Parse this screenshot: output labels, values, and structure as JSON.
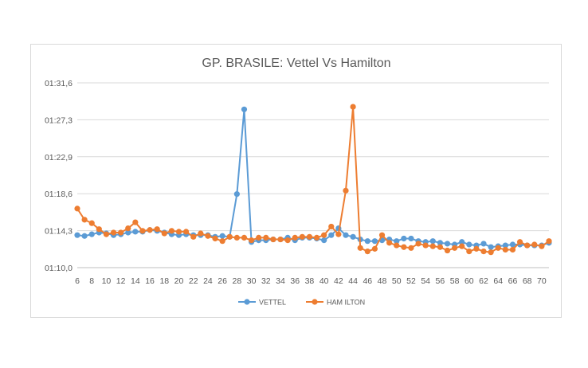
{
  "chart_data": {
    "type": "line",
    "title": "GP. BRASILE: Vettel Vs Hamilton",
    "xlabel": "",
    "ylabel": "",
    "x": [
      6,
      7,
      8,
      9,
      10,
      11,
      12,
      13,
      14,
      15,
      16,
      17,
      18,
      19,
      20,
      21,
      22,
      23,
      24,
      25,
      26,
      27,
      28,
      29,
      30,
      31,
      32,
      33,
      34,
      35,
      36,
      37,
      38,
      39,
      40,
      41,
      42,
      43,
      44,
      45,
      46,
      47,
      48,
      49,
      50,
      51,
      52,
      53,
      54,
      55,
      56,
      57,
      58,
      59,
      60,
      61,
      62,
      63,
      64,
      65,
      66,
      67,
      68,
      69,
      70,
      71
    ],
    "xticks": [
      "6",
      "8",
      "10",
      "12",
      "14",
      "16",
      "18",
      "20",
      "22",
      "24",
      "26",
      "28",
      "30",
      "32",
      "34",
      "36",
      "38",
      "40",
      "42",
      "44",
      "46",
      "48",
      "50",
      "52",
      "54",
      "56",
      "58",
      "60",
      "62",
      "64",
      "66",
      "68",
      "70"
    ],
    "yticks": [
      "01:10,0",
      "01:14,3",
      "01:18,6",
      "01:22,9",
      "01:27,3",
      "01:31,6"
    ],
    "ylim_seconds": [
      70.0,
      91.6
    ],
    "grid": "horizontal",
    "legend_position": "bottom",
    "series": [
      {
        "name": "VETTEL",
        "color": "#5b9bd5",
        "values_seconds": [
          73.8,
          73.7,
          73.9,
          74.1,
          74.0,
          73.8,
          73.9,
          74.1,
          74.2,
          74.2,
          74.4,
          74.3,
          74.1,
          73.9,
          73.8,
          73.9,
          73.8,
          73.8,
          73.8,
          73.6,
          73.7,
          73.6,
          78.6,
          88.5,
          73.0,
          73.2,
          73.2,
          73.3,
          73.3,
          73.5,
          73.2,
          73.5,
          73.5,
          73.4,
          73.2,
          73.8,
          74.6,
          73.8,
          73.6,
          73.3,
          73.1,
          73.1,
          73.2,
          73.3,
          73.1,
          73.4,
          73.4,
          73.1,
          73.0,
          73.1,
          72.9,
          72.8,
          72.7,
          73.0,
          72.7,
          72.6,
          72.8,
          72.4,
          72.5,
          72.6,
          72.7,
          72.7,
          72.6,
          72.6,
          72.6,
          72.9
        ]
      },
      {
        "name": "HAM ILTON",
        "color": "#ed7d31",
        "values_seconds": [
          76.9,
          75.6,
          75.2,
          74.5,
          73.9,
          74.1,
          74.1,
          74.6,
          75.3,
          74.3,
          74.4,
          74.5,
          74.0,
          74.3,
          74.2,
          74.2,
          73.6,
          74.0,
          73.7,
          73.4,
          73.1,
          73.6,
          73.5,
          73.5,
          73.2,
          73.5,
          73.5,
          73.3,
          73.3,
          73.2,
          73.5,
          73.6,
          73.6,
          73.5,
          73.8,
          74.8,
          73.9,
          79.0,
          88.8,
          72.3,
          71.9,
          72.2,
          73.8,
          72.9,
          72.6,
          72.4,
          72.3,
          72.8,
          72.6,
          72.5,
          72.4,
          72.0,
          72.3,
          72.5,
          71.9,
          72.2,
          71.9,
          71.8,
          72.3,
          72.1,
          72.1,
          73.0,
          72.6,
          72.7,
          72.5,
          73.1
        ]
      }
    ]
  }
}
